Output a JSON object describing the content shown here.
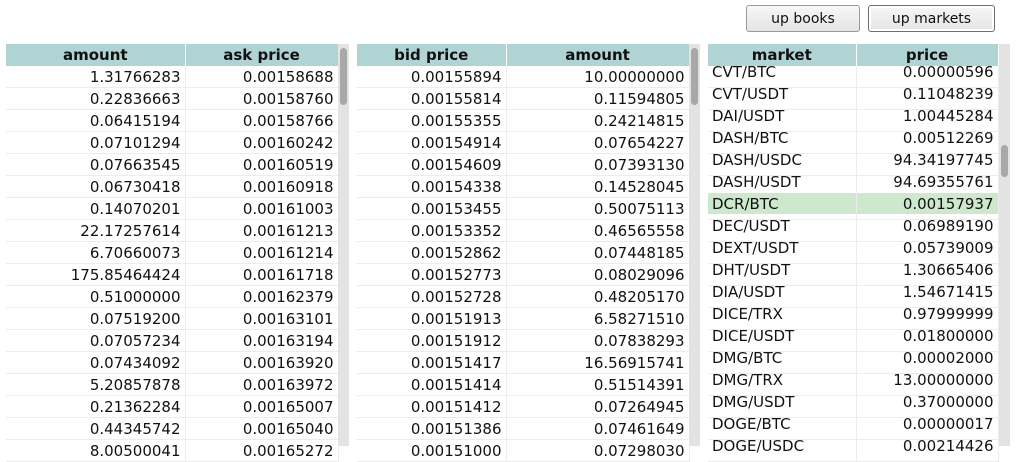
{
  "toolbar": {
    "books_label": "up books",
    "markets_label": "up markets"
  },
  "asks": {
    "columns": [
      "amount",
      "ask price"
    ],
    "rows": [
      [
        "1.31766283",
        "0.00158688"
      ],
      [
        "0.22836663",
        "0.00158760"
      ],
      [
        "0.06415194",
        "0.00158766"
      ],
      [
        "0.07101294",
        "0.00160242"
      ],
      [
        "0.07663545",
        "0.00160519"
      ],
      [
        "0.06730418",
        "0.00160918"
      ],
      [
        "0.14070201",
        "0.00161003"
      ],
      [
        "22.17257614",
        "0.00161213"
      ],
      [
        "6.70660073",
        "0.00161214"
      ],
      [
        "175.85464424",
        "0.00161718"
      ],
      [
        "0.51000000",
        "0.00162379"
      ],
      [
        "0.07519200",
        "0.00163101"
      ],
      [
        "0.07057234",
        "0.00163194"
      ],
      [
        "0.07434092",
        "0.00163920"
      ],
      [
        "5.20857878",
        "0.00163972"
      ],
      [
        "0.21362284",
        "0.00165007"
      ],
      [
        "0.44345742",
        "0.00165040"
      ],
      [
        "8.00500041",
        "0.00165272"
      ]
    ]
  },
  "bids": {
    "columns": [
      "bid price",
      "amount"
    ],
    "rows": [
      [
        "0.00155894",
        "10.00000000"
      ],
      [
        "0.00155814",
        "0.11594805"
      ],
      [
        "0.00155355",
        "0.24214815"
      ],
      [
        "0.00154914",
        "0.07654227"
      ],
      [
        "0.00154609",
        "0.07393130"
      ],
      [
        "0.00154338",
        "0.14528045"
      ],
      [
        "0.00153455",
        "0.50075113"
      ],
      [
        "0.00153352",
        "0.46565558"
      ],
      [
        "0.00152862",
        "0.07448185"
      ],
      [
        "0.00152773",
        "0.08029096"
      ],
      [
        "0.00152728",
        "0.48205170"
      ],
      [
        "0.00151913",
        "6.58271510"
      ],
      [
        "0.00151912",
        "0.07838293"
      ],
      [
        "0.00151417",
        "16.56915741"
      ],
      [
        "0.00151414",
        "0.51514391"
      ],
      [
        "0.00151412",
        "0.07264945"
      ],
      [
        "0.00151386",
        "0.07461649"
      ],
      [
        "0.00151000",
        "0.07298030"
      ]
    ]
  },
  "markets": {
    "columns": [
      "market",
      "price"
    ],
    "selected_index": 6,
    "rows": [
      [
        "CVT/BTC",
        "0.00000596"
      ],
      [
        "CVT/USDT",
        "0.11048239"
      ],
      [
        "DAI/USDT",
        "1.00445284"
      ],
      [
        "DASH/BTC",
        "0.00512269"
      ],
      [
        "DASH/USDC",
        "94.34197745"
      ],
      [
        "DASH/USDT",
        "94.69355761"
      ],
      [
        "DCR/BTC",
        "0.00157937"
      ],
      [
        "DEC/USDT",
        "0.06989190"
      ],
      [
        "DEXT/USDT",
        "0.05739009"
      ],
      [
        "DHT/USDT",
        "1.30665406"
      ],
      [
        "DIA/USDT",
        "1.54671415"
      ],
      [
        "DICE/TRX",
        "0.97999999"
      ],
      [
        "DICE/USDT",
        "0.01800000"
      ],
      [
        "DMG/BTC",
        "0.00002000"
      ],
      [
        "DMG/TRX",
        "13.00000000"
      ],
      [
        "DMG/USDT",
        "0.37000000"
      ],
      [
        "DOGE/BTC",
        "0.00000017"
      ],
      [
        "DOGE/USDC",
        "0.00214426"
      ]
    ]
  }
}
